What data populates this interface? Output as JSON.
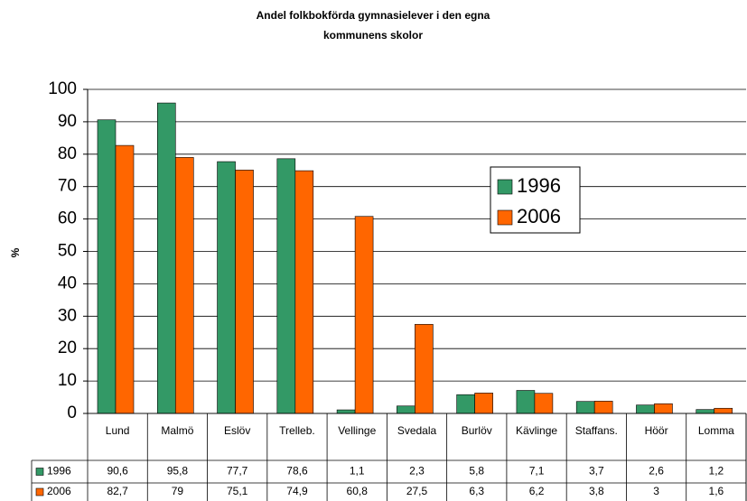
{
  "chart_data": {
    "type": "bar",
    "title": [
      "Andel folkbokförda gymnasielever i den egna",
      "kommunens skolor"
    ],
    "y_label": "%",
    "categories": [
      "Lund",
      "Malmö",
      "Eslöv",
      "Trelleb.",
      "Vellinge",
      "Svedala",
      "Burlöv",
      "Kävlinge",
      "Staffans.",
      "Höör",
      "Lomma"
    ],
    "series": [
      {
        "name": "1996",
        "color": "#339966",
        "values": [
          90.6,
          95.8,
          77.7,
          78.6,
          1.1,
          2.3,
          5.8,
          7.1,
          3.7,
          2.6,
          1.2
        ],
        "value_labels": [
          "90,6",
          "95,8",
          "77,7",
          "78,6",
          "1,1",
          "2,3",
          "5,8",
          "7,1",
          "3,7",
          "2,6",
          "1,2"
        ]
      },
      {
        "name": "2006",
        "color": "#ff6600",
        "values": [
          82.7,
          79,
          75.1,
          74.9,
          60.8,
          27.5,
          6.3,
          6.2,
          3.8,
          3,
          1.6
        ],
        "value_labels": [
          "82,7",
          "79",
          "75,1",
          "74,9",
          "60,8",
          "27,5",
          "6,3",
          "6,2",
          "3,8",
          "3",
          "1,6"
        ]
      }
    ],
    "ylim": [
      0,
      100
    ],
    "yticks": [
      0,
      10,
      20,
      30,
      40,
      50,
      60,
      70,
      80,
      90,
      100
    ],
    "grid": true,
    "legend": "right"
  }
}
